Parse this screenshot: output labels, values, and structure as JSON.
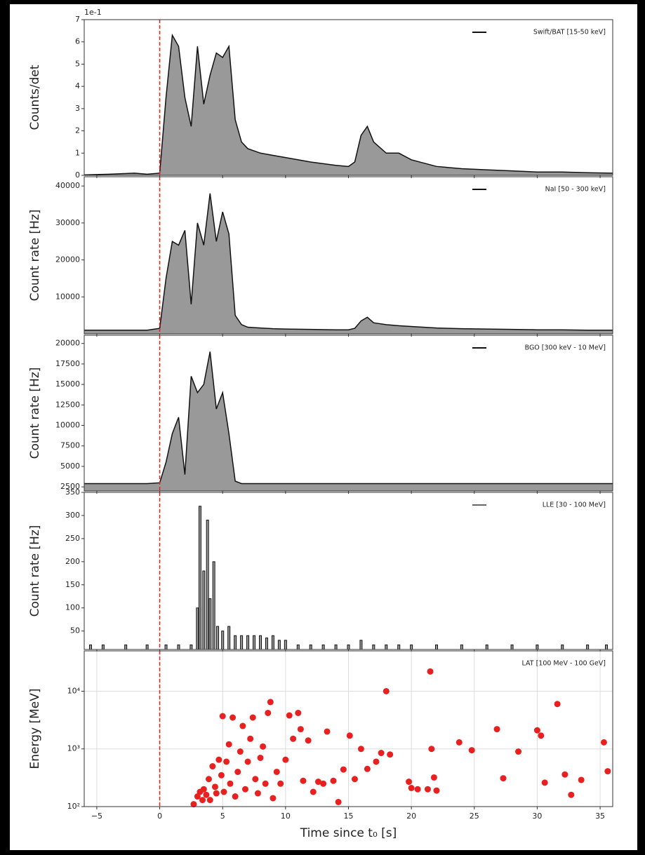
{
  "chart_data": [
    {
      "type": "area",
      "ylabel": "Counts/det",
      "offset_text": "1e-1",
      "ylim": [
        0,
        7
      ],
      "yticks": [
        0,
        1,
        2,
        3,
        4,
        5,
        6,
        7
      ],
      "xlim": [
        -6,
        36
      ],
      "vline": 0,
      "legend": "upper right",
      "x": [
        -6,
        -4,
        -2,
        -1,
        0,
        0.5,
        1,
        1.5,
        2,
        2.5,
        3,
        3.5,
        4,
        4.5,
        5,
        5.5,
        6,
        6.5,
        7,
        8,
        9,
        10,
        12,
        14,
        15,
        15.5,
        16,
        16.5,
        17,
        18,
        19,
        20,
        22,
        24,
        26,
        28,
        30,
        32,
        34,
        36
      ],
      "series": [
        {
          "name": "Swift/BAT [15-50 keV]",
          "color": "#999999",
          "values": [
            0.02,
            0.05,
            0.1,
            0.05,
            0.1,
            3.5,
            6.3,
            5.8,
            3.5,
            2.2,
            5.8,
            3.2,
            4.5,
            5.5,
            5.3,
            5.8,
            2.5,
            1.5,
            1.2,
            1.0,
            0.9,
            0.8,
            0.6,
            0.45,
            0.4,
            0.6,
            1.8,
            2.2,
            1.5,
            1.0,
            1.0,
            0.7,
            0.4,
            0.3,
            0.25,
            0.2,
            0.15,
            0.15,
            0.12,
            0.1
          ]
        }
      ]
    },
    {
      "type": "area",
      "ylabel": "Count rate [Hz]",
      "ylim": [
        0,
        42500
      ],
      "yticks": [
        10000,
        20000,
        30000,
        40000
      ],
      "xlim": [
        -6,
        36
      ],
      "vline": 0,
      "legend": "upper right",
      "x": [
        -6,
        -4,
        -2,
        -1,
        0,
        0.5,
        1,
        1.5,
        2,
        2.5,
        3,
        3.5,
        4,
        4.5,
        5,
        5.5,
        6,
        6.5,
        7,
        8,
        9,
        10,
        12,
        14,
        15,
        15.5,
        16,
        16.5,
        17,
        18,
        19,
        20,
        22,
        24,
        26,
        28,
        30,
        32,
        34,
        36
      ],
      "series": [
        {
          "name": "NaI [50 - 300 keV]",
          "color": "#999999",
          "values": [
            1000,
            1000,
            1000,
            1000,
            1500,
            15000,
            25000,
            24000,
            28000,
            8000,
            30000,
            24000,
            38000,
            25000,
            33000,
            27000,
            5000,
            2500,
            1800,
            1600,
            1400,
            1300,
            1200,
            1100,
            1100,
            1500,
            3500,
            4500,
            3000,
            2500,
            2200,
            2000,
            1600,
            1400,
            1300,
            1200,
            1100,
            1100,
            1000,
            1000
          ]
        }
      ]
    },
    {
      "type": "area",
      "ylabel": "Count rate [Hz]",
      "ylim": [
        2000,
        21000
      ],
      "yticks": [
        2500,
        5000,
        7500,
        10000,
        12500,
        15000,
        17500,
        20000
      ],
      "xlim": [
        -6,
        36
      ],
      "vline": 0,
      "legend": "upper right",
      "x": [
        -6,
        -4,
        -2,
        -1,
        0,
        0.5,
        1,
        1.5,
        2,
        2.5,
        3,
        3.5,
        4,
        4.5,
        5,
        5.5,
        6,
        6.5,
        7,
        8,
        9,
        10,
        12,
        14,
        15,
        15.5,
        16,
        16.5,
        17,
        18,
        19,
        20,
        22,
        24,
        26,
        28,
        30,
        32,
        34,
        36
      ],
      "series": [
        {
          "name": "BGO [300 keV - 10 MeV]",
          "color": "#999999",
          "values": [
            2900,
            2900,
            2900,
            2900,
            3000,
            5500,
            9000,
            11000,
            4000,
            16000,
            14000,
            15000,
            19000,
            12000,
            14000,
            9000,
            3200,
            2900,
            2900,
            2900,
            2900,
            2900,
            2900,
            2900,
            2900,
            2900,
            2900,
            2900,
            2900,
            2900,
            2900,
            2900,
            2900,
            2900,
            2900,
            2900,
            2900,
            2900,
            2900,
            2900
          ]
        }
      ]
    },
    {
      "type": "bar",
      "ylabel": "Count rate [Hz]",
      "ylim": [
        10,
        350
      ],
      "yticks": [
        50,
        100,
        150,
        200,
        250,
        300,
        350
      ],
      "xlim": [
        -6,
        36
      ],
      "vline": 0,
      "legend": "upper right",
      "x": [
        -5.5,
        -4.5,
        -2.7,
        -1,
        0.5,
        1.5,
        2.5,
        3,
        3.2,
        3.5,
        3.8,
        4,
        4.3,
        4.6,
        5,
        5.5,
        6,
        6.5,
        7,
        7.5,
        8,
        8.5,
        9,
        9.5,
        10,
        11,
        12,
        13,
        14,
        15,
        16,
        17,
        18,
        19,
        20,
        22,
        24,
        26,
        28,
        30,
        32,
        34,
        35.5
      ],
      "series": [
        {
          "name": "LLE [30 - 100 MeV]",
          "color": "#999999",
          "values": [
            20,
            20,
            20,
            20,
            20,
            20,
            20,
            100,
            320,
            180,
            290,
            120,
            200,
            60,
            50,
            60,
            40,
            40,
            40,
            40,
            40,
            35,
            40,
            30,
            30,
            20,
            20,
            20,
            20,
            20,
            30,
            20,
            20,
            20,
            20,
            20,
            20,
            20,
            20,
            20,
            20,
            20,
            20
          ]
        }
      ]
    },
    {
      "type": "scatter",
      "ylabel": "Energy [MeV]",
      "xlabel": "Time since t₀ [s]",
      "yscale": "log",
      "grid": true,
      "ylim": [
        100,
        50000
      ],
      "yticks": [
        {
          "value": 100,
          "label": "10²"
        },
        {
          "value": 1000,
          "label": "10³"
        },
        {
          "value": 10000,
          "label": "10⁴"
        }
      ],
      "xlim": [
        -6,
        36
      ],
      "xticks": [
        {
          "value": -5,
          "label": "−5"
        },
        0,
        5,
        10,
        15,
        20,
        25,
        30,
        35
      ],
      "vline": 0,
      "legend": "upper right",
      "series": [
        {
          "name": "LAT [100 MeV - 100 GeV]",
          "color": "#e8201f",
          "x": [
            2.7,
            3,
            3.2,
            3.4,
            3.5,
            3.7,
            3.9,
            4,
            4.2,
            4.4,
            4.5,
            4.7,
            4.9,
            5,
            5.1,
            5.3,
            5.5,
            5.6,
            5.8,
            6,
            6.2,
            6.4,
            6.6,
            6.8,
            7,
            7.2,
            7.4,
            7.6,
            7.8,
            8,
            8.2,
            8.4,
            8.6,
            8.8,
            9,
            9.3,
            9.6,
            10,
            10.3,
            10.6,
            11,
            11.2,
            11.4,
            11.8,
            12.2,
            12.6,
            13,
            13.3,
            13.8,
            14.2,
            14.6,
            15.1,
            15.5,
            16,
            16.5,
            17.2,
            17.6,
            18,
            18.3,
            19.8,
            20,
            20.5,
            21.3,
            21.5,
            21.6,
            21.8,
            22,
            23.8,
            24.8,
            26.8,
            27.3,
            28.5,
            30,
            30.3,
            30.6,
            31.6,
            32.2,
            32.7,
            33.5,
            35.3,
            35.6
          ],
          "values": [
            110,
            150,
            180,
            130,
            200,
            160,
            300,
            130,
            500,
            220,
            170,
            650,
            350,
            3700,
            180,
            600,
            1200,
            250,
            3500,
            150,
            400,
            900,
            2500,
            200,
            600,
            1500,
            3500,
            300,
            170,
            700,
            1100,
            250,
            4200,
            6500,
            140,
            400,
            250,
            650,
            3800,
            1500,
            4200,
            2200,
            280,
            1400,
            180,
            270,
            250,
            2000,
            280,
            120,
            440,
            1700,
            300,
            1000,
            450,
            600,
            850,
            10000,
            800,
            270,
            210,
            200,
            200,
            22000,
            1000,
            320,
            190,
            1300,
            950,
            2200,
            310,
            900,
            2100,
            1700,
            260,
            6000,
            360,
            160,
            290,
            1300,
            410
          ]
        }
      ]
    }
  ]
}
